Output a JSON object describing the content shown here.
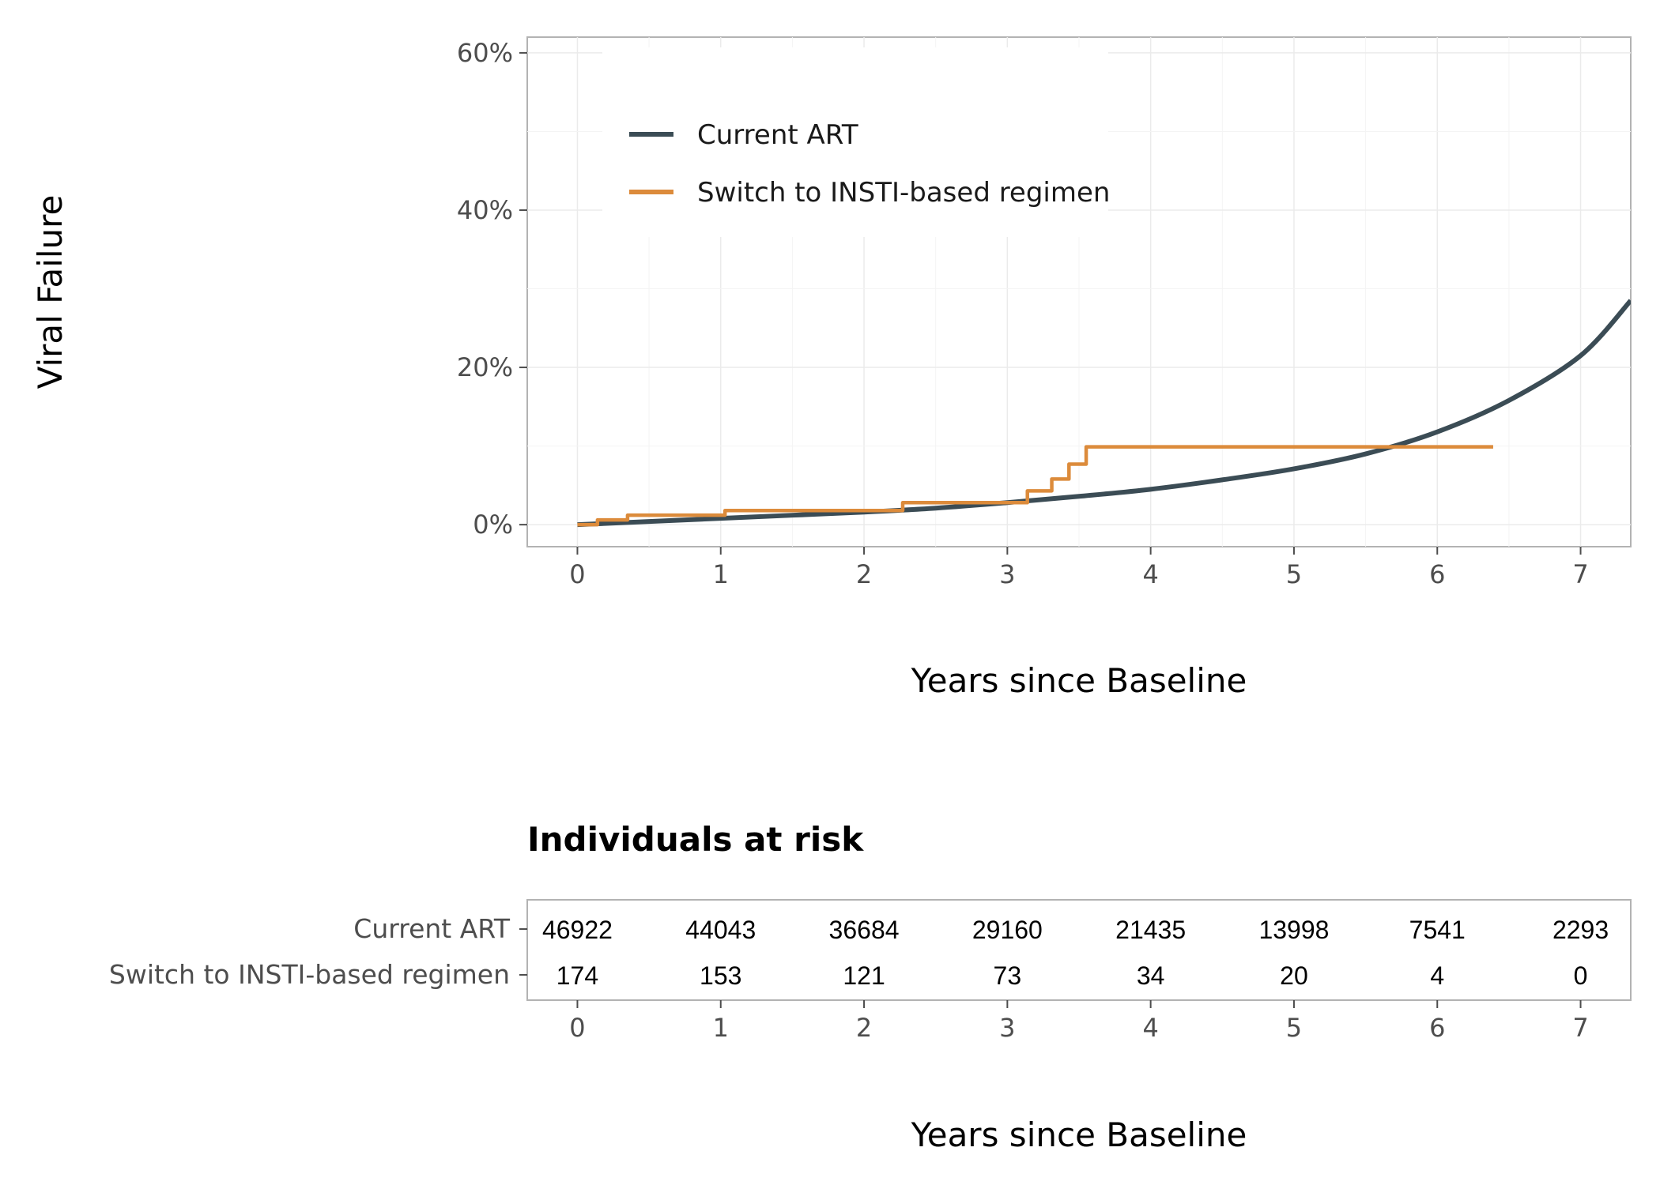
{
  "chart_data": {
    "type": "line",
    "xlabel": "Years since Baseline",
    "ylabel": "Viral Failure",
    "xlim": [
      -0.35,
      7.35
    ],
    "ylim": [
      -0.028,
      0.62
    ],
    "x_ticks": [
      "0",
      "1",
      "2",
      "3",
      "4",
      "5",
      "6",
      "7"
    ],
    "y_ticks": [
      "0%",
      "20%",
      "40%",
      "60%"
    ],
    "grid": true,
    "legend_position": "top-left inside",
    "series": [
      {
        "name": "Current ART",
        "color": "#3b4c55",
        "step": false,
        "x": [
          0,
          0.5,
          1,
          1.5,
          2,
          2.5,
          3,
          3.5,
          4,
          4.5,
          5,
          5.5,
          6,
          6.5,
          7,
          7.35
        ],
        "y": [
          0.0,
          0.004,
          0.008,
          0.012,
          0.016,
          0.021,
          0.028,
          0.036,
          0.045,
          0.057,
          0.071,
          0.09,
          0.118,
          0.158,
          0.215,
          0.285
        ]
      },
      {
        "name": "Switch to INSTI-based regimen",
        "color": "#dc8b3b",
        "step": true,
        "x": [
          0,
          0.14,
          0.35,
          1.03,
          2.27,
          3.14,
          3.31,
          3.43,
          3.55,
          6.39
        ],
        "y": [
          0.0,
          0.006,
          0.012,
          0.018,
          0.028,
          0.043,
          0.058,
          0.077,
          0.099,
          0.099
        ]
      }
    ]
  },
  "risk_table": {
    "title": "Individuals at risk",
    "xlabel": "Years since Baseline",
    "x_ticks": [
      "0",
      "1",
      "2",
      "3",
      "4",
      "5",
      "6",
      "7"
    ],
    "rows": [
      {
        "label": "Current ART",
        "values": [
          "46922",
          "44043",
          "36684",
          "29160",
          "21435",
          "13998",
          "7541",
          "2293"
        ]
      },
      {
        "label": "Switch to INSTI-based regimen",
        "values": [
          "174",
          "153",
          "121",
          "73",
          "34",
          "20",
          "4",
          "0"
        ]
      }
    ]
  }
}
